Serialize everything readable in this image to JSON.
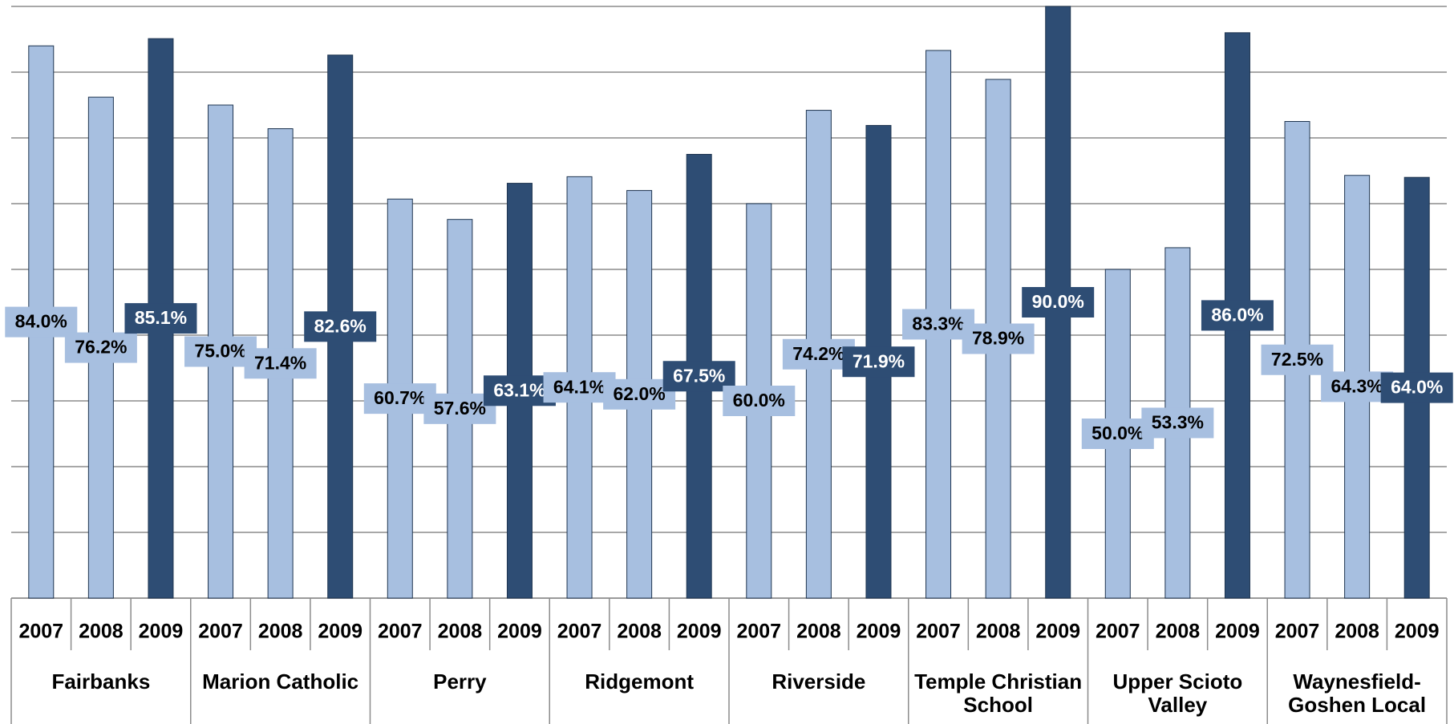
{
  "chart_data": {
    "type": "bar",
    "categories": [
      "Fairbanks",
      "Marion Catholic",
      "Perry",
      "Ridgemont",
      "Riverside",
      "Temple Christian School",
      "Upper Scioto Valley",
      "Waynesfield-Goshen Local"
    ],
    "series": [
      {
        "name": "2007",
        "color": "#a7bfe0",
        "values": [
          84.0,
          75.0,
          60.7,
          64.1,
          60.0,
          83.3,
          50.0,
          72.5
        ],
        "value_labels": [
          "84.0%",
          "75.0%",
          "60.7%",
          "64.1%",
          "60.0%",
          "83.3%",
          "50.0%",
          "72.5%"
        ]
      },
      {
        "name": "2008",
        "color": "#a7bfe0",
        "values": [
          76.2,
          71.4,
          57.6,
          62.0,
          74.2,
          78.9,
          53.3,
          64.3
        ],
        "value_labels": [
          "76.2%",
          "71.4%",
          "57.6%",
          "62.0%",
          "74.2%",
          "78.9%",
          "53.3%",
          "64.3%"
        ]
      },
      {
        "name": "2009",
        "color": "#2e4d74",
        "values": [
          85.1,
          82.6,
          63.1,
          67.5,
          71.9,
          90.0,
          86.0,
          64.0
        ],
        "value_labels": [
          "85.1%",
          "82.6%",
          "63.1%",
          "67.5%",
          "71.9%",
          "90.0%",
          "86.0%",
          "64.0%"
        ]
      }
    ],
    "ylim": [
      0,
      90
    ],
    "yticks": [
      0,
      10,
      20,
      30,
      40,
      50,
      60,
      70,
      80,
      90
    ],
    "grid": true
  }
}
